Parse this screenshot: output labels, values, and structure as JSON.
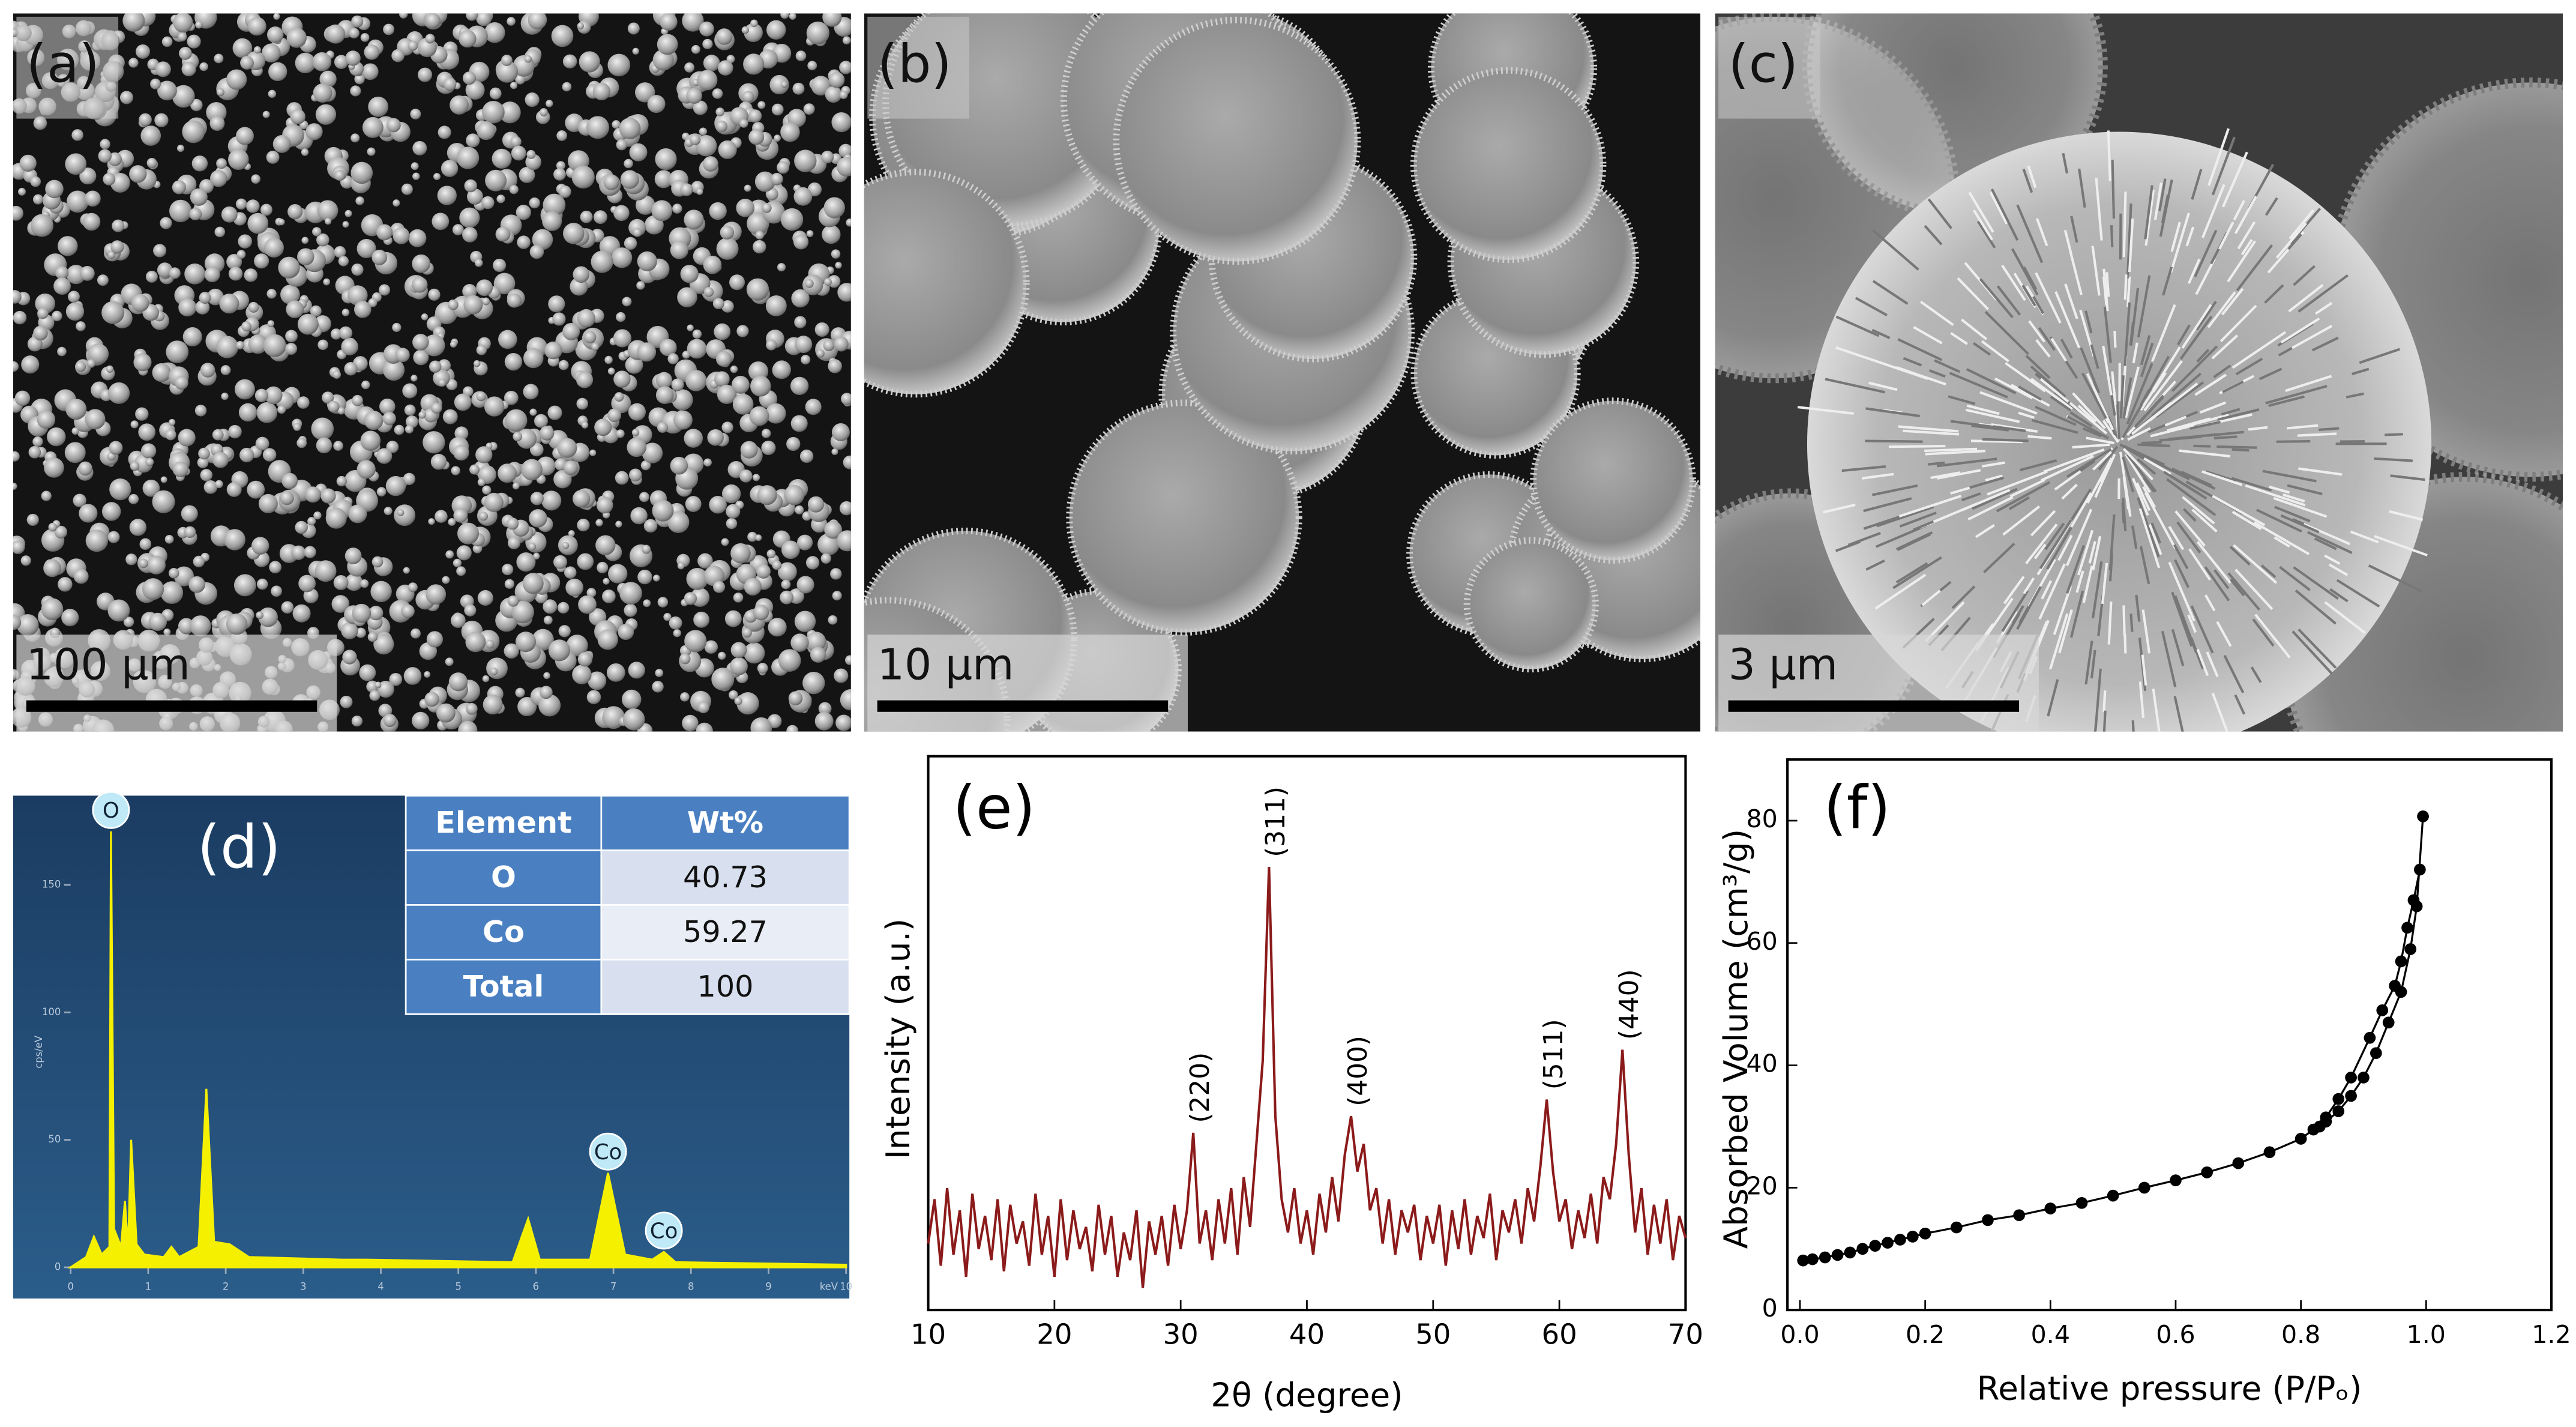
{
  "images": [
    {
      "label": "(a)",
      "scale_bar": "100 µm"
    },
    {
      "label": "(b)",
      "scale_bar": "10 µm"
    },
    {
      "label": "(c)",
      "scale_bar": "3 µm"
    }
  ],
  "chart_data": [
    {
      "type": "area",
      "title": "(d)",
      "xlabel": "keV",
      "ylabel": "cps/eV",
      "color": "#f5f000",
      "x": [
        0,
        0.2,
        0.3,
        0.4,
        0.5,
        0.52,
        0.56,
        0.65,
        0.7,
        0.74,
        0.78,
        0.85,
        0.95,
        1.2,
        1.3,
        1.4,
        1.65,
        1.75,
        1.85,
        2.05,
        2.3,
        3.5,
        3.8,
        5.7,
        5.9,
        6.05,
        6.7,
        6.93,
        7.15,
        7.5,
        7.65,
        7.8,
        10
      ],
      "values": [
        0,
        4,
        12,
        5,
        8,
        171,
        15,
        8,
        26,
        7,
        50,
        9,
        5,
        4,
        8,
        4,
        8,
        70,
        10,
        9,
        4,
        3,
        3,
        2,
        19,
        3,
        3,
        37,
        5,
        3,
        6,
        2,
        1
      ],
      "xlim": [
        0,
        10
      ],
      "ylim": [
        0,
        185
      ],
      "xticks": [
        0,
        1,
        2,
        3,
        4,
        5,
        6,
        7,
        8,
        9,
        10
      ],
      "yticks": [
        0,
        50,
        100,
        150
      ],
      "peak_labels": [
        {
          "label": "O",
          "x": 0.52
        },
        {
          "label": "Co",
          "x": 6.93
        },
        {
          "label": "Co",
          "x": 7.65
        }
      ],
      "table": {
        "header": [
          "Element",
          "Wt%"
        ],
        "rows": [
          [
            "O",
            40.73
          ],
          [
            "Co",
            59.27
          ],
          [
            "Total",
            100
          ]
        ]
      }
    },
    {
      "type": "line",
      "title": "(e)",
      "xlabel": "2θ (degree)",
      "ylabel": "Intensity (a.u.)",
      "color": "#8b1a1a",
      "x": [
        10,
        10.5,
        11,
        11.5,
        12,
        12.5,
        13,
        13.5,
        14,
        14.5,
        15,
        15.5,
        16,
        16.5,
        17,
        17.5,
        18,
        18.5,
        19,
        19.5,
        20,
        20.5,
        21,
        21.5,
        22,
        22.5,
        23,
        23.5,
        24,
        24.5,
        25,
        25.5,
        26,
        26.5,
        27,
        27.5,
        28,
        28.5,
        29,
        29.5,
        30,
        30.5,
        31,
        31.5,
        32,
        32.5,
        33,
        33.5,
        34,
        34.5,
        35,
        35.5,
        36,
        36.5,
        37,
        37.5,
        38,
        38.5,
        39,
        39.5,
        40,
        40.5,
        41,
        41.5,
        42,
        42.5,
        43,
        43.5,
        44,
        44.5,
        45,
        45.5,
        46,
        46.5,
        47,
        47.5,
        48,
        48.5,
        49,
        49.5,
        50,
        50.5,
        51,
        51.5,
        52,
        52.5,
        53,
        53.5,
        54,
        54.5,
        55,
        55.5,
        56,
        56.5,
        57,
        57.5,
        58,
        58.5,
        59,
        59.5,
        60,
        60.5,
        61,
        61.5,
        62,
        62.5,
        63,
        63.5,
        64,
        64.5,
        65,
        65.5,
        66,
        66.5,
        67,
        67.5,
        68,
        68.5,
        69,
        69.5,
        70
      ],
      "values": [
        12,
        20,
        8,
        22,
        10,
        18,
        6,
        21,
        11,
        17,
        9,
        20,
        7,
        19,
        12,
        16,
        8,
        21,
        10,
        17,
        6,
        20,
        9,
        18,
        11,
        15,
        7,
        19,
        10,
        17,
        6,
        14,
        9,
        18,
        4,
        16,
        10,
        17,
        8,
        19,
        11,
        18,
        32,
        12,
        18,
        9,
        20,
        12,
        22,
        10,
        24,
        15,
        30,
        45,
        80,
        35,
        20,
        14,
        22,
        12,
        18,
        10,
        21,
        14,
        24,
        16,
        28,
        35,
        25,
        30,
        18,
        22,
        12,
        20,
        10,
        18,
        14,
        19,
        9,
        17,
        12,
        19,
        8,
        18,
        11,
        20,
        10,
        17,
        13,
        21,
        9,
        18,
        14,
        20,
        12,
        22,
        16,
        26,
        38,
        25,
        16,
        20,
        11,
        18,
        13,
        21,
        12,
        24,
        20,
        30,
        47,
        28,
        14,
        22,
        10,
        19,
        12,
        20,
        9,
        17,
        13
      ],
      "xlim": [
        10,
        70
      ],
      "ylim": [
        0,
        100
      ],
      "xticks": [
        10,
        20,
        30,
        40,
        50,
        60,
        70
      ],
      "peak_labels": [
        {
          "label": "(220)",
          "x": 31
        },
        {
          "label": "(311)",
          "x": 37
        },
        {
          "label": "(400)",
          "x": 43.5
        },
        {
          "label": "(511)",
          "x": 59
        },
        {
          "label": "(440)",
          "x": 65
        }
      ]
    },
    {
      "type": "scatter",
      "title": "(f)",
      "xlabel": "Relative pressure (P/Pₒ)",
      "ylabel": "Absorbed Volume (cm³/g)",
      "xlim": [
        -0.02,
        1.2
      ],
      "ylim": [
        0,
        90
      ],
      "xticks": [
        {
          "value": 0,
          "label": "0.0"
        },
        0.2,
        0.4,
        0.6,
        0.8,
        {
          "value": 1,
          "label": "1.0"
        },
        1.2
      ],
      "yticks": [
        0,
        20,
        40,
        60,
        80
      ],
      "series": [
        {
          "color": "#000000",
          "x": [
            0.005,
            0.02,
            0.04,
            0.06,
            0.08,
            0.1,
            0.12,
            0.14,
            0.16,
            0.18,
            0.2,
            0.25,
            0.3,
            0.35,
            0.4,
            0.45,
            0.5,
            0.55,
            0.6,
            0.65,
            0.7,
            0.75,
            0.8,
            0.82,
            0.84,
            0.86,
            0.88,
            0.9,
            0.92,
            0.94,
            0.96,
            0.975,
            0.985,
            0.995
          ],
          "values": [
            8.1,
            8.3,
            8.6,
            9,
            9.4,
            10,
            10.5,
            11,
            11.5,
            12,
            12.5,
            13.5,
            14.7,
            15.5,
            16.6,
            17.5,
            18.7,
            20,
            21.2,
            22.5,
            24,
            25.8,
            28,
            29.5,
            30.8,
            32.5,
            35,
            38,
            42,
            47,
            52,
            59,
            66,
            80.7
          ]
        },
        {
          "color": "#000000",
          "x": [
            0.99,
            0.98,
            0.97,
            0.96,
            0.95,
            0.93,
            0.91,
            0.88,
            0.86,
            0.84,
            0.83
          ],
          "values": [
            72,
            67,
            62.5,
            57,
            53,
            49,
            44.5,
            38,
            34.5,
            31.5,
            30
          ]
        }
      ]
    }
  ]
}
